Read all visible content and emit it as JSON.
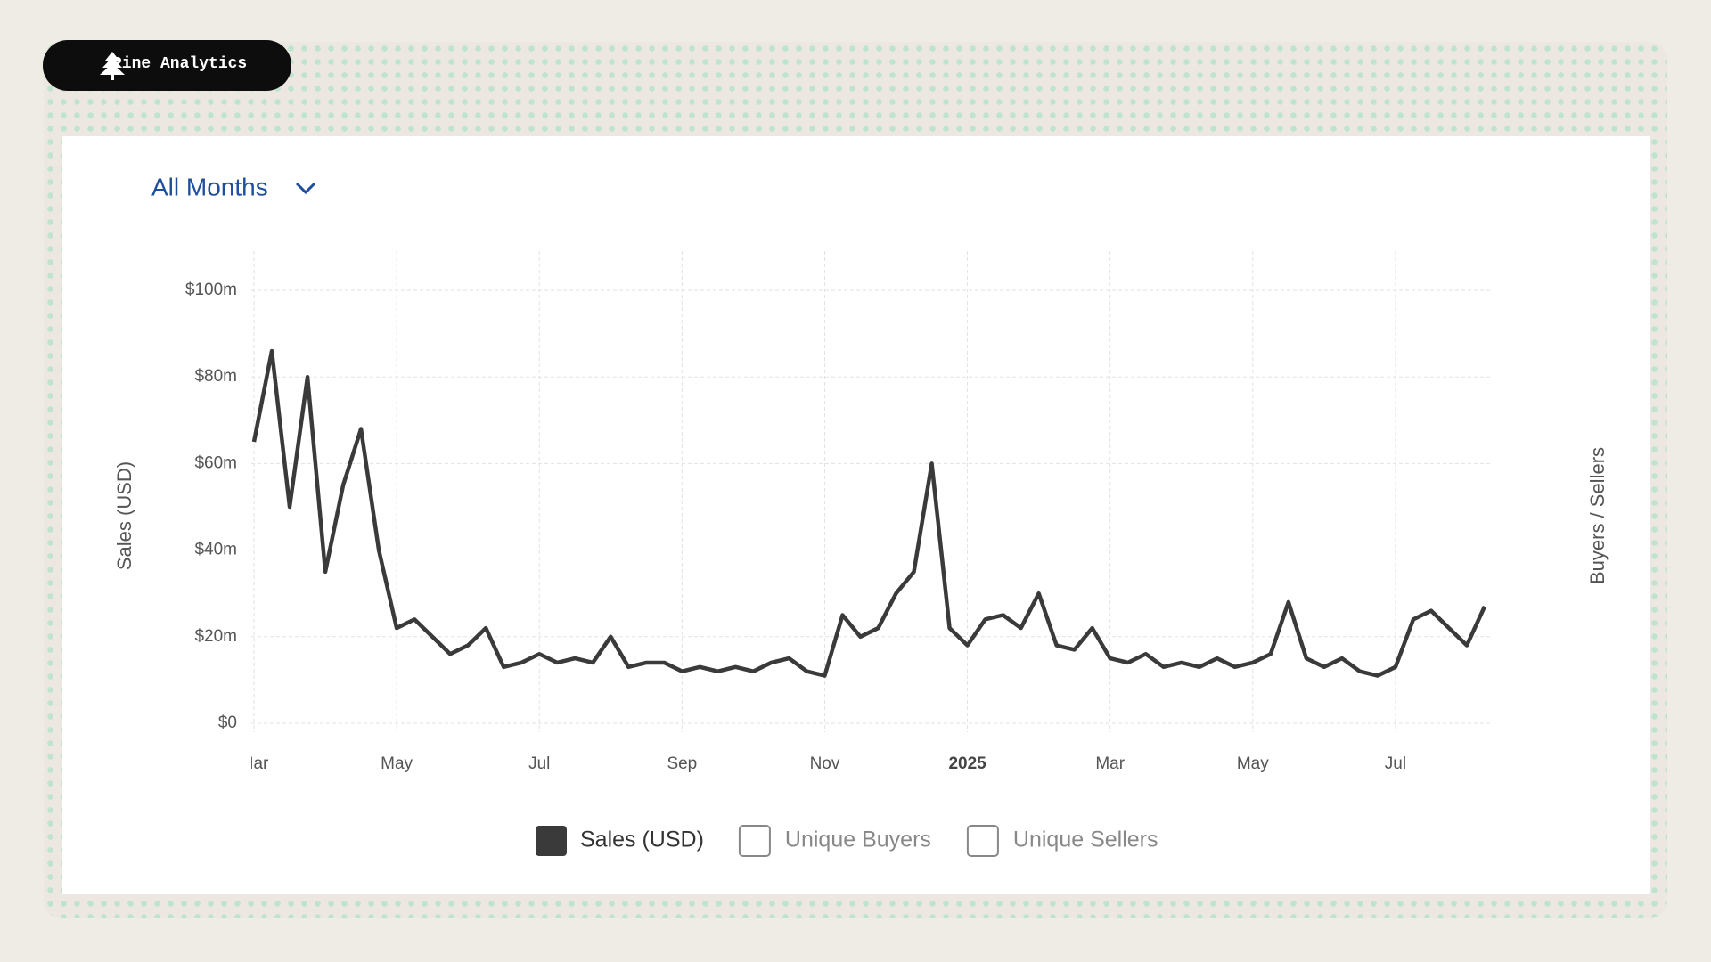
{
  "brand": "Pine Analytics",
  "dropdown": "All Months",
  "chart_data": {
    "type": "line",
    "y_label": "Sales (USD)",
    "y2_label": "Buyers / Sellers",
    "categories": [
      "Mar",
      null,
      null,
      null,
      null,
      null,
      null,
      null,
      "May",
      null,
      null,
      null,
      null,
      null,
      null,
      null,
      "Jul",
      null,
      null,
      null,
      null,
      null,
      null,
      null,
      "Sep",
      null,
      null,
      null,
      null,
      null,
      null,
      null,
      "Nov",
      null,
      null,
      null,
      null,
      null,
      null,
      null,
      "2025",
      null,
      null,
      null,
      null,
      null,
      null,
      null,
      "Mar",
      null,
      null,
      null,
      null,
      null,
      null,
      null,
      "May",
      null,
      null,
      null,
      null,
      null,
      null,
      null,
      "Jul",
      null,
      null,
      null,
      null,
      null
    ],
    "series": [
      {
        "name": "Sales (USD)",
        "color": "#3a3a3a",
        "values": [
          65,
          86,
          50,
          80,
          35,
          55,
          68,
          40,
          22,
          24,
          20,
          16,
          18,
          22,
          13,
          14,
          16,
          14,
          15,
          14,
          20,
          13,
          14,
          14,
          12,
          13,
          12,
          13,
          12,
          14,
          15,
          12,
          11,
          25,
          20,
          22,
          30,
          35,
          60,
          22,
          18,
          24,
          25,
          22,
          30,
          18,
          17,
          22,
          15,
          14,
          16,
          13,
          14,
          13,
          15,
          13,
          14,
          16,
          28,
          15,
          13,
          15,
          12,
          11,
          13,
          24,
          26,
          22,
          18,
          27
        ]
      }
    ],
    "hidden_series": [
      "Unique Buyers",
      "Unique Sellers"
    ],
    "ylim": [
      0,
      100
    ],
    "yticks": [
      {
        "value": 0,
        "label": "$0"
      },
      {
        "value": 20,
        "label": "$20m"
      },
      {
        "value": 40,
        "label": "$40m"
      },
      {
        "value": 60,
        "label": "$60m"
      },
      {
        "value": 80,
        "label": "$80m"
      },
      {
        "value": 100,
        "label": "$100m"
      }
    ],
    "grid": true
  }
}
